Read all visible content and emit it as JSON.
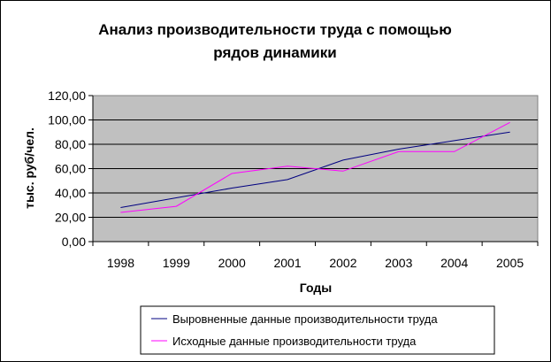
{
  "chart_data": {
    "type": "line",
    "title_lines": [
      "Анализ производительности труда с помощью",
      "рядов динамики"
    ],
    "xlabel": "Годы",
    "ylabel": "тыс. руб/чел.",
    "categories": [
      "1998",
      "1999",
      "2000",
      "2001",
      "2002",
      "2003",
      "2004",
      "2005"
    ],
    "ylim": [
      0,
      120
    ],
    "yticks": [
      "0,00",
      "20,00",
      "40,00",
      "60,00",
      "80,00",
      "100,00",
      "120,00"
    ],
    "grid": true,
    "plot_background": "#c0c0c0",
    "legend_position": "bottom-right",
    "series": [
      {
        "name": "Выровненные данные производительности труда",
        "color": "#000080",
        "values": [
          28,
          36,
          44,
          51,
          67,
          76,
          83,
          90
        ]
      },
      {
        "name": "Исходные данные производительности труда",
        "color": "#ff00ff",
        "values": [
          24,
          29,
          56,
          62,
          58,
          74,
          74,
          98
        ]
      }
    ]
  }
}
